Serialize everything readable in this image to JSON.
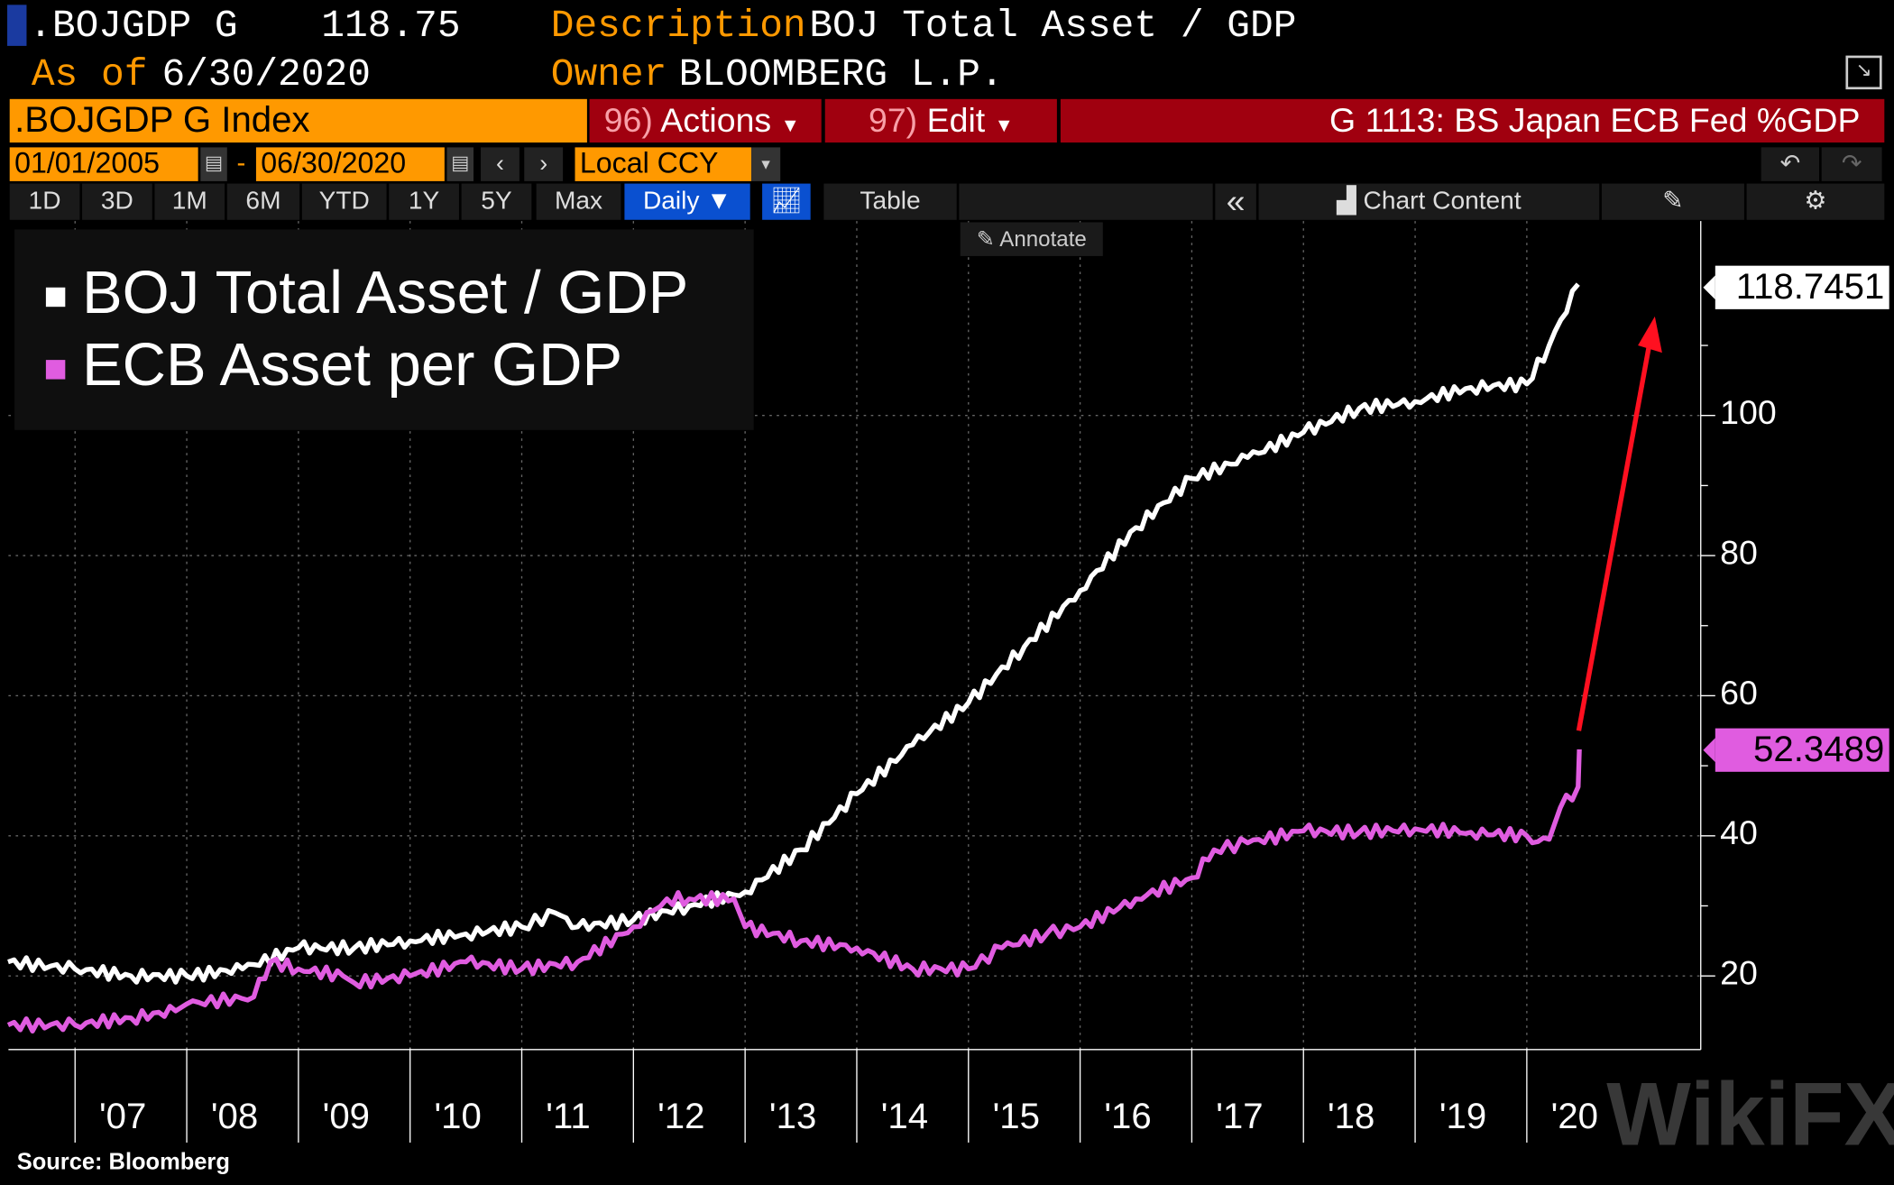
{
  "header": {
    "ticker": ".BOJGDP G",
    "last_value": "118.75",
    "desc_label": "Description",
    "desc_value": "BOJ Total Asset / GDP",
    "asof_label": "As of",
    "asof_value": "6/30/2020",
    "owner_label": "Owner",
    "owner_value": "BLOOMBERG L.P."
  },
  "command": {
    "security": ".BOJGDP G Index",
    "actions_num": "96)",
    "actions_label": "Actions",
    "edit_num": "97)",
    "edit_label": "Edit",
    "title": "G 1113: BS Japan ECB Fed %GDP"
  },
  "dates": {
    "start": "01/01/2005",
    "sep": "-",
    "end": "06/30/2020",
    "currency": "Local CCY"
  },
  "toolbar": {
    "ranges": [
      "1D",
      "3D",
      "1M",
      "6M",
      "YTD",
      "1Y",
      "5Y",
      "Max"
    ],
    "frequency": "Daily ▼",
    "table": "Table",
    "collapse": "«",
    "chart_content": "Chart Content",
    "annotate": "Annotate"
  },
  "colors": {
    "orange": "#ff9900",
    "red": "#a0000f",
    "blue": "#0a50d0",
    "boj": "#ffffff",
    "ecb": "#e05ce0",
    "arrow": "#ff1020"
  },
  "footer": {
    "source": "Source: Bloomberg",
    "watermark": "WikiFX"
  },
  "chart_data": {
    "type": "line",
    "legend": [
      "BOJ Total Asset / GDP",
      "ECB Asset per GDP"
    ],
    "legend_placement": "top-left",
    "ylim": [
      0,
      128
    ],
    "xlim": [
      2006.4,
      2021.6
    ],
    "yticks": [
      20,
      40,
      60,
      80,
      100
    ],
    "xticks": [
      {
        "x": 2007,
        "label": "'07"
      },
      {
        "x": 2008,
        "label": "'08"
      },
      {
        "x": 2009,
        "label": "'09"
      },
      {
        "x": 2010,
        "label": "'10"
      },
      {
        "x": 2011,
        "label": "'11"
      },
      {
        "x": 2012,
        "label": "'12"
      },
      {
        "x": 2013,
        "label": "'13"
      },
      {
        "x": 2014,
        "label": "'14"
      },
      {
        "x": 2015,
        "label": "'15"
      },
      {
        "x": 2016,
        "label": "'16"
      },
      {
        "x": 2017,
        "label": "'17"
      },
      {
        "x": 2018,
        "label": "'18"
      },
      {
        "x": 2019,
        "label": "'19"
      },
      {
        "x": 2020,
        "label": "'20"
      }
    ],
    "series": [
      {
        "name": "BOJ Total Asset / GDP",
        "last_label": "118.7451",
        "points": [
          [
            2006.4,
            22
          ],
          [
            2007,
            21
          ],
          [
            2007.5,
            20
          ],
          [
            2008,
            20
          ],
          [
            2008.5,
            21
          ],
          [
            2009,
            24
          ],
          [
            2009.5,
            24
          ],
          [
            2010,
            25
          ],
          [
            2010.5,
            26
          ],
          [
            2011,
            27
          ],
          [
            2011.3,
            29
          ],
          [
            2011.5,
            27
          ],
          [
            2012,
            28
          ],
          [
            2012.5,
            30
          ],
          [
            2013,
            32
          ],
          [
            2013.5,
            38
          ],
          [
            2014,
            46
          ],
          [
            2014.5,
            53
          ],
          [
            2015,
            59
          ],
          [
            2015.5,
            67
          ],
          [
            2016,
            75
          ],
          [
            2016.5,
            84
          ],
          [
            2017,
            91
          ],
          [
            2017.5,
            94
          ],
          [
            2018,
            97.6
          ],
          [
            2018.5,
            101
          ],
          [
            2019,
            102
          ],
          [
            2019.5,
            104
          ],
          [
            2020,
            104.5
          ],
          [
            2020.2,
            110
          ],
          [
            2020.46,
            118.75
          ]
        ]
      },
      {
        "name": "ECB Asset per GDP",
        "last_label": "52.3489",
        "points": [
          [
            2006.4,
            13
          ],
          [
            2007,
            13
          ],
          [
            2007.5,
            14
          ],
          [
            2007.9,
            15
          ],
          [
            2008,
            16
          ],
          [
            2008.6,
            17
          ],
          [
            2008.75,
            22
          ],
          [
            2009,
            21
          ],
          [
            2009.4,
            20
          ],
          [
            2009.5,
            19
          ],
          [
            2010,
            20
          ],
          [
            2010.5,
            22
          ],
          [
            2011,
            21
          ],
          [
            2011.5,
            22
          ],
          [
            2012,
            27
          ],
          [
            2012.3,
            31
          ],
          [
            2012.5,
            31
          ],
          [
            2012.9,
            31
          ],
          [
            2013,
            27
          ],
          [
            2013.5,
            25
          ],
          [
            2014,
            24
          ],
          [
            2014.5,
            21
          ],
          [
            2015,
            21
          ],
          [
            2015.3,
            24
          ],
          [
            2015.7,
            26
          ],
          [
            2016,
            27
          ],
          [
            2016.5,
            31
          ],
          [
            2017,
            34
          ],
          [
            2017.2,
            38
          ],
          [
            2017.5,
            39
          ],
          [
            2018,
            40.7
          ],
          [
            2018.5,
            40.5
          ],
          [
            2019,
            41
          ],
          [
            2019.5,
            40.5
          ],
          [
            2020,
            40
          ],
          [
            2020.05,
            39
          ],
          [
            2020.2,
            39.5
          ],
          [
            2020.3,
            44
          ],
          [
            2020.46,
            47
          ],
          [
            2020.47,
            52.35
          ]
        ]
      }
    ]
  }
}
